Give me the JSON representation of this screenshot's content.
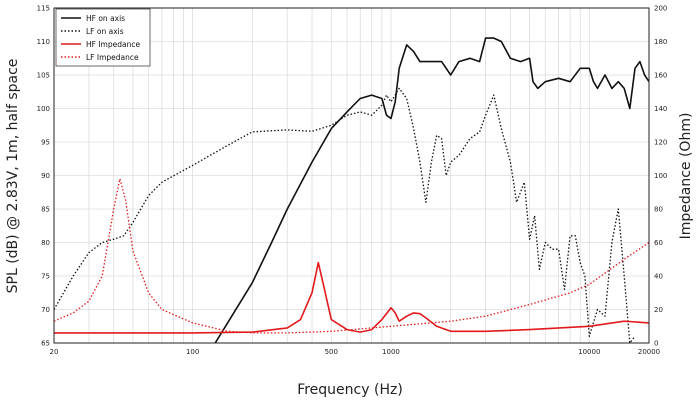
{
  "chart_data": {
    "type": "line",
    "xlabel": "Frequency (Hz)",
    "ylabel_left": "SPL (dB) @ 2.83V, 1m, half space",
    "ylabel_right": "Impedance (Ohm)",
    "x_scale": "log",
    "xlim": [
      20,
      20000
    ],
    "ylim_left": [
      65,
      115
    ],
    "ylim_right": [
      0,
      200
    ],
    "x_ticks": [
      20,
      100,
      500,
      1000,
      10000,
      20000
    ],
    "x_tick_labels": [
      "20",
      "100",
      "500",
      "1000",
      "10000",
      "20000"
    ],
    "y_left_ticks": [
      65,
      70,
      75,
      80,
      85,
      90,
      95,
      100,
      105,
      110,
      115
    ],
    "y_left_tick_labels": [
      "65",
      "70",
      "75",
      "80",
      "85",
      "90",
      "95",
      "100",
      "105",
      "110",
      "115"
    ],
    "y_right_ticks": [
      0,
      20,
      40,
      60,
      80,
      100,
      120,
      140,
      160,
      180,
      200
    ],
    "y_right_tick_labels": [
      "0",
      "20",
      "40",
      "60",
      "80",
      "100",
      "120",
      "140",
      "160",
      "180",
      "200"
    ],
    "grid": true,
    "legend_position": "top-left",
    "series": [
      {
        "name": "HF on axis",
        "axis": "left",
        "color": "#111111",
        "style": "solid",
        "points": [
          [
            130,
            65
          ],
          [
            150,
            68
          ],
          [
            200,
            74
          ],
          [
            250,
            80
          ],
          [
            300,
            85
          ],
          [
            400,
            92
          ],
          [
            500,
            97
          ],
          [
            600,
            99.5
          ],
          [
            700,
            101.5
          ],
          [
            800,
            102
          ],
          [
            900,
            101.5
          ],
          [
            950,
            99
          ],
          [
            1000,
            98.5
          ],
          [
            1050,
            101
          ],
          [
            1100,
            106
          ],
          [
            1200,
            109.5
          ],
          [
            1300,
            108.5
          ],
          [
            1400,
            107
          ],
          [
            1600,
            107
          ],
          [
            1800,
            107
          ],
          [
            2000,
            105
          ],
          [
            2200,
            107
          ],
          [
            2500,
            107.5
          ],
          [
            2800,
            107
          ],
          [
            3000,
            110.5
          ],
          [
            3300,
            110.5
          ],
          [
            3600,
            110
          ],
          [
            4000,
            107.5
          ],
          [
            4500,
            107
          ],
          [
            5000,
            107.5
          ],
          [
            5200,
            104
          ],
          [
            5500,
            103
          ],
          [
            6000,
            104
          ],
          [
            7000,
            104.5
          ],
          [
            8000,
            104
          ],
          [
            9000,
            106
          ],
          [
            10000,
            106
          ],
          [
            10500,
            104
          ],
          [
            11000,
            103
          ],
          [
            12000,
            105
          ],
          [
            13000,
            103
          ],
          [
            14000,
            104
          ],
          [
            15000,
            103
          ],
          [
            16000,
            100
          ],
          [
            17000,
            106
          ],
          [
            18000,
            107
          ],
          [
            19000,
            105
          ],
          [
            20000,
            104
          ]
        ]
      },
      {
        "name": "LF on axis",
        "axis": "left",
        "color": "#111111",
        "style": "dotted",
        "points": [
          [
            20,
            70
          ],
          [
            25,
            75
          ],
          [
            30,
            78.5
          ],
          [
            35,
            80
          ],
          [
            40,
            80.5
          ],
          [
            45,
            81
          ],
          [
            50,
            83
          ],
          [
            60,
            87
          ],
          [
            70,
            89
          ],
          [
            100,
            91.5
          ],
          [
            150,
            94.5
          ],
          [
            200,
            96.5
          ],
          [
            300,
            96.8
          ],
          [
            400,
            96.6
          ],
          [
            500,
            97.5
          ],
          [
            600,
            99
          ],
          [
            700,
            99.5
          ],
          [
            800,
            99
          ],
          [
            900,
            100.5
          ],
          [
            950,
            102
          ],
          [
            1000,
            101
          ],
          [
            1100,
            103
          ],
          [
            1200,
            101.5
          ],
          [
            1300,
            97
          ],
          [
            1400,
            92
          ],
          [
            1500,
            86
          ],
          [
            1600,
            92
          ],
          [
            1700,
            96
          ],
          [
            1800,
            95.5
          ],
          [
            1900,
            90
          ],
          [
            2000,
            92
          ],
          [
            2200,
            93
          ],
          [
            2500,
            95.5
          ],
          [
            2800,
            96.5
          ],
          [
            3000,
            99
          ],
          [
            3300,
            102
          ],
          [
            3600,
            97
          ],
          [
            4000,
            92
          ],
          [
            4300,
            86
          ],
          [
            4700,
            89
          ],
          [
            5000,
            80.5
          ],
          [
            5300,
            84
          ],
          [
            5600,
            76
          ],
          [
            6000,
            80
          ],
          [
            6500,
            79
          ],
          [
            7000,
            79
          ],
          [
            7500,
            73
          ],
          [
            8000,
            81
          ],
          [
            8500,
            81
          ],
          [
            9000,
            77
          ],
          [
            9500,
            75
          ],
          [
            10000,
            66
          ],
          [
            11000,
            70
          ],
          [
            12000,
            69
          ],
          [
            13000,
            80
          ],
          [
            14000,
            85
          ],
          [
            15000,
            75
          ],
          [
            16000,
            65
          ],
          [
            17000,
            66
          ]
        ]
      },
      {
        "name": "HF Impedance",
        "axis": "right",
        "color": "#e31a1c",
        "style": "solid",
        "points": [
          [
            20,
            6
          ],
          [
            50,
            6
          ],
          [
            100,
            6
          ],
          [
            200,
            6.5
          ],
          [
            300,
            9
          ],
          [
            350,
            14
          ],
          [
            400,
            30
          ],
          [
            430,
            48
          ],
          [
            460,
            33
          ],
          [
            500,
            14
          ],
          [
            600,
            8
          ],
          [
            700,
            6.5
          ],
          [
            800,
            8
          ],
          [
            900,
            14
          ],
          [
            1000,
            21
          ],
          [
            1050,
            18
          ],
          [
            1100,
            13
          ],
          [
            1200,
            16
          ],
          [
            1300,
            18
          ],
          [
            1400,
            17.5
          ],
          [
            1500,
            15
          ],
          [
            1700,
            10
          ],
          [
            2000,
            7
          ],
          [
            3000,
            7
          ],
          [
            5000,
            8
          ],
          [
            10000,
            10
          ],
          [
            15000,
            13
          ],
          [
            20000,
            12
          ]
        ]
      },
      {
        "name": "LF Impedance",
        "axis": "right",
        "color": "#e31a1c",
        "style": "dotted",
        "points": [
          [
            20,
            13
          ],
          [
            25,
            18
          ],
          [
            30,
            25
          ],
          [
            35,
            40
          ],
          [
            40,
            80
          ],
          [
            43,
            98
          ],
          [
            46,
            85
          ],
          [
            50,
            55
          ],
          [
            60,
            30
          ],
          [
            70,
            20
          ],
          [
            100,
            12
          ],
          [
            150,
            7
          ],
          [
            200,
            6
          ],
          [
            300,
            6
          ],
          [
            500,
            7
          ],
          [
            1000,
            10
          ],
          [
            2000,
            13
          ],
          [
            3000,
            16
          ],
          [
            5000,
            23
          ],
          [
            8000,
            30
          ],
          [
            10000,
            35
          ],
          [
            15000,
            50
          ],
          [
            20000,
            60
          ]
        ]
      }
    ]
  }
}
